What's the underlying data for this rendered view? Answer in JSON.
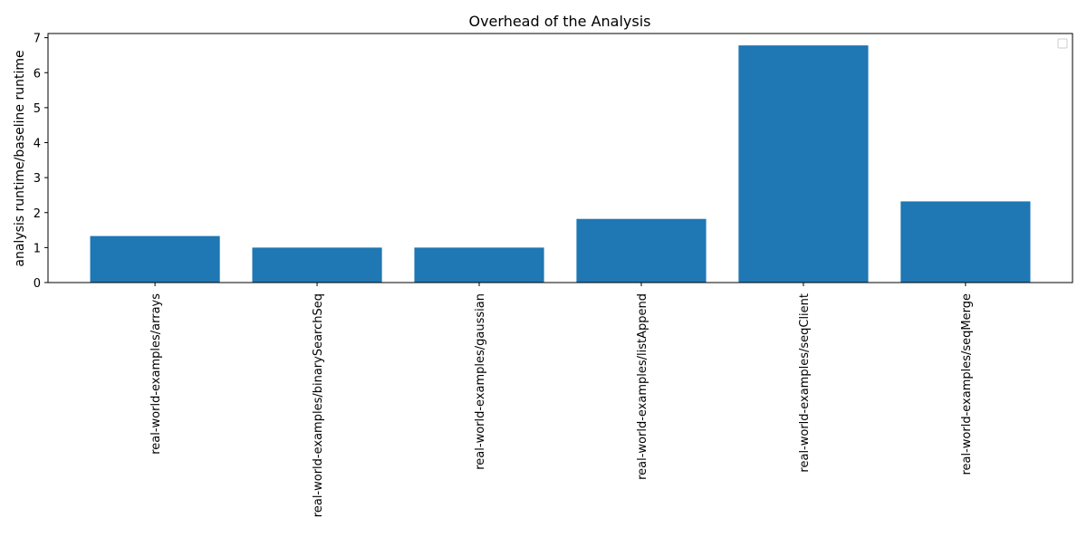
{
  "chart_data": {
    "type": "bar",
    "title": "Overhead of the Analysis",
    "xlabel": "",
    "ylabel": "analysis runtime/baseline runtime",
    "categories": [
      "real-world-examples/arrays",
      "real-world-examples/binarySearchSeq",
      "real-world-examples/gaussian",
      "real-world-examples/listAppend",
      "real-world-examples/seqClient",
      "real-world-examples/seqMerge"
    ],
    "values": [
      1.33,
      1.0,
      1.0,
      1.82,
      6.78,
      2.32
    ],
    "ylim": [
      0,
      7.12
    ],
    "yticks": [
      0,
      1,
      2,
      3,
      4,
      5,
      6,
      7
    ],
    "bar_color": "#1f77b4",
    "grid": false,
    "legend": {
      "placement": "top-right",
      "entries": []
    }
  }
}
